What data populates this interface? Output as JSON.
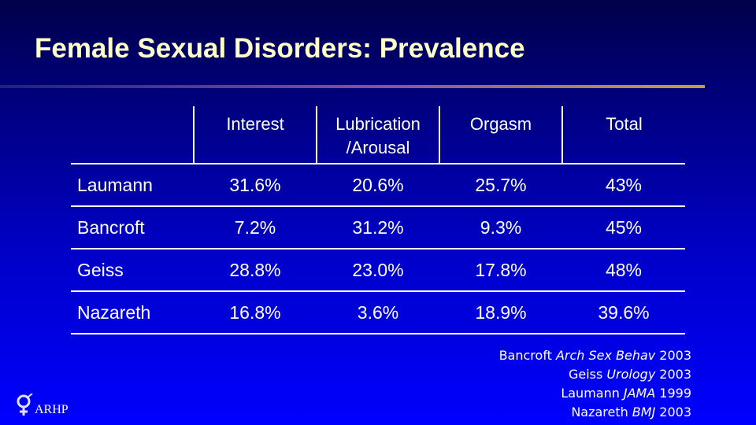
{
  "title": "Female Sexual Disorders: Prevalence",
  "table": {
    "columns": [
      "Interest",
      "Lubrication /Arousal",
      "Orgasm",
      "Total"
    ],
    "rows": [
      {
        "label": "Laumann",
        "cells": [
          "31.6%",
          "20.6%",
          "25.7%",
          "43%"
        ]
      },
      {
        "label": "Bancroft",
        "cells": [
          "7.2%",
          "31.2%",
          "9.3%",
          "45%"
        ]
      },
      {
        "label": "Geiss",
        "cells": [
          "28.8%",
          "23.0%",
          "17.8%",
          "48%"
        ]
      },
      {
        "label": "Nazareth",
        "cells": [
          "16.8%",
          "3.6%",
          "18.9%",
          "39.6%"
        ]
      }
    ]
  },
  "references": [
    {
      "author": "Bancroft",
      "journal": "Arch Sex Behav",
      "year": "2003"
    },
    {
      "author": "Geiss",
      "journal": "Urology",
      "year": "2003"
    },
    {
      "author": "Laumann",
      "journal": "JAMA",
      "year": "1999"
    },
    {
      "author": "Nazareth",
      "journal": "BMJ",
      "year": "2003"
    }
  ],
  "logo": {
    "text": "ARHP"
  }
}
